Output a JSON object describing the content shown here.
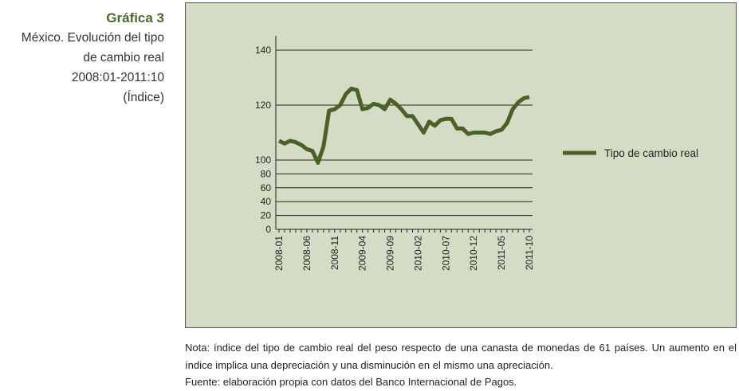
{
  "header": {
    "number": "Gráfica 3",
    "title_lines": [
      "México. Evolución del tipo",
      "de cambio real",
      "2008:01-2011:10",
      "(Índice)"
    ]
  },
  "chart_data": {
    "type": "line",
    "categories": [
      "2008-01",
      null,
      null,
      null,
      null,
      "2008-06",
      null,
      null,
      null,
      null,
      "2008-11",
      null,
      null,
      null,
      null,
      "2009-04",
      null,
      null,
      null,
      null,
      "2009-09",
      null,
      null,
      null,
      null,
      "2010-02",
      null,
      null,
      null,
      null,
      "2010-07",
      null,
      null,
      null,
      null,
      "2010-12",
      null,
      null,
      null,
      null,
      "2011-05",
      null,
      null,
      null,
      null,
      "2011-10"
    ],
    "series": [
      {
        "name": "Tipo de cambio real",
        "color": "#4a6128",
        "values": [
          107,
          106,
          107,
          106.5,
          105.5,
          104,
          103.3,
          96,
          105,
          118,
          118.5,
          120,
          124,
          126,
          125.5,
          118.5,
          119,
          120.5,
          120,
          118.5,
          122,
          120.5,
          118.5,
          116,
          116,
          113,
          110,
          114,
          112.5,
          114.5,
          115,
          115,
          111.5,
          111.5,
          109.5,
          110,
          110,
          110,
          109.5,
          110.5,
          111,
          113.5,
          118.5,
          121,
          122.5,
          123
        ]
      }
    ],
    "ylim": [
      0,
      140
    ],
    "y_break": 100,
    "yticks": [
      0,
      20,
      40,
      60,
      80,
      100,
      120,
      140
    ],
    "grid": true,
    "legend": "right"
  },
  "footer": {
    "note": "Nota: índice del tipo de cambio real del peso respecto de una canasta de monedas de 61 países. Un aumento en el índice implica una depreciación y una disminución en el mismo una apreciación.",
    "source": "Fuente: elaboración propia con datos del Banco Internacional de Pagos."
  }
}
